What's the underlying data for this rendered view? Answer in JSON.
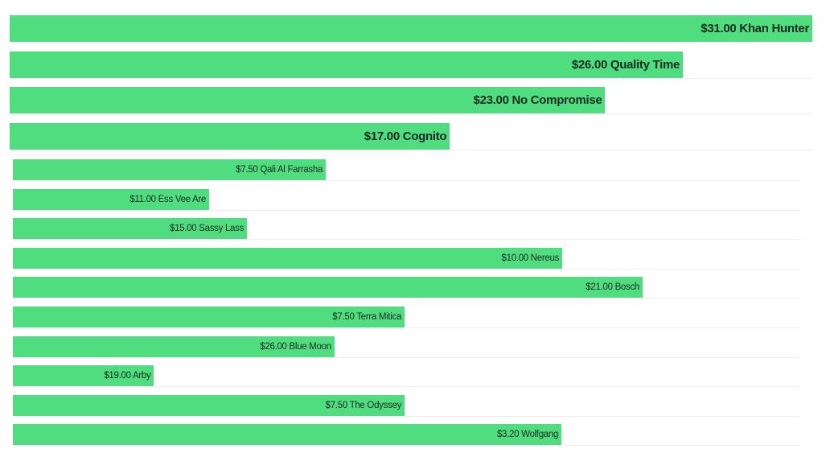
{
  "chart_data": {
    "type": "bar",
    "orientation": "horizontal",
    "title": "",
    "xlabel": "",
    "ylabel": "",
    "legend": "none",
    "grid": false,
    "bar_color": "#4fdd80",
    "separator_color": "#f0f0f0",
    "groups": [
      {
        "categories": [
          "Khan Hunter",
          "Quality Time",
          "No Compromise",
          "Cognito"
        ],
        "values": [
          31.0,
          26.0,
          23.0,
          17.0
        ],
        "value_labels": [
          "$31.00",
          "$26.00",
          "$23.00",
          "$17.00"
        ],
        "xlim": [
          0,
          31
        ]
      },
      {
        "categories": [
          "Qali Al Farrasha",
          "Ess Vee Are",
          "Sassy Lass",
          "Nereus",
          "Bosch",
          "Terra Mitica",
          "Blue Moon",
          "Arby",
          "The Odyssey",
          "Wolfgang"
        ],
        "values": [
          7.5,
          11.0,
          15.0,
          10.0,
          21.0,
          7.5,
          26.0,
          19.0,
          7.5,
          3.2
        ],
        "value_labels": [
          "$7.50",
          "$11.00",
          "$15.00",
          "$10.00",
          "$21.00",
          "$7.50",
          "$26.00",
          "$19.00",
          "$7.50",
          "$3.20"
        ],
        "bar_fractions": [
          0.397,
          0.249,
          0.297,
          0.697,
          0.799,
          0.497,
          0.408,
          0.179,
          0.497,
          0.696
        ]
      }
    ]
  }
}
